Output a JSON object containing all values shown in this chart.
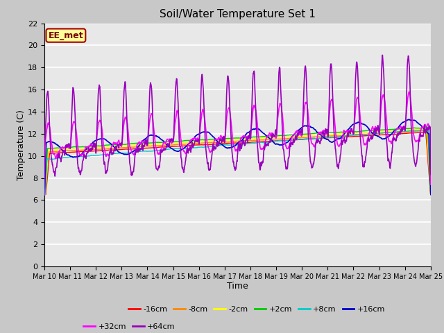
{
  "title": "Soil/Water Temperature Set 1",
  "xlabel": "Time",
  "ylabel": "Temperature (C)",
  "ylim": [
    0,
    22
  ],
  "yticks": [
    0,
    2,
    4,
    6,
    8,
    10,
    12,
    14,
    16,
    18,
    20,
    22
  ],
  "x_labels": [
    "Mar 10",
    "Mar 11",
    "Mar 12",
    "Mar 13",
    "Mar 14",
    "Mar 15",
    "Mar 16",
    "Mar 17",
    "Mar 18",
    "Mar 19",
    "Mar 20",
    "Mar 21",
    "Mar 22",
    "Mar 23",
    "Mar 24",
    "Mar 25"
  ],
  "series_labels": [
    "-16cm",
    "-8cm",
    "-2cm",
    "+2cm",
    "+8cm",
    "+16cm",
    "+32cm",
    "+64cm"
  ],
  "series_colors": [
    "#ff0000",
    "#ff8800",
    "#ffff00",
    "#00cc00",
    "#00cccc",
    "#0000cc",
    "#ff00ff",
    "#9900bb"
  ],
  "annotation_text": "EE_met",
  "annotation_bg": "#ffff99",
  "annotation_border": "#aa0000",
  "bg_color": "#e8e8e8",
  "grid_color": "#ffffff",
  "n_points": 1500,
  "days": 15,
  "figwidth": 6.4,
  "figheight": 4.8,
  "dpi": 100
}
